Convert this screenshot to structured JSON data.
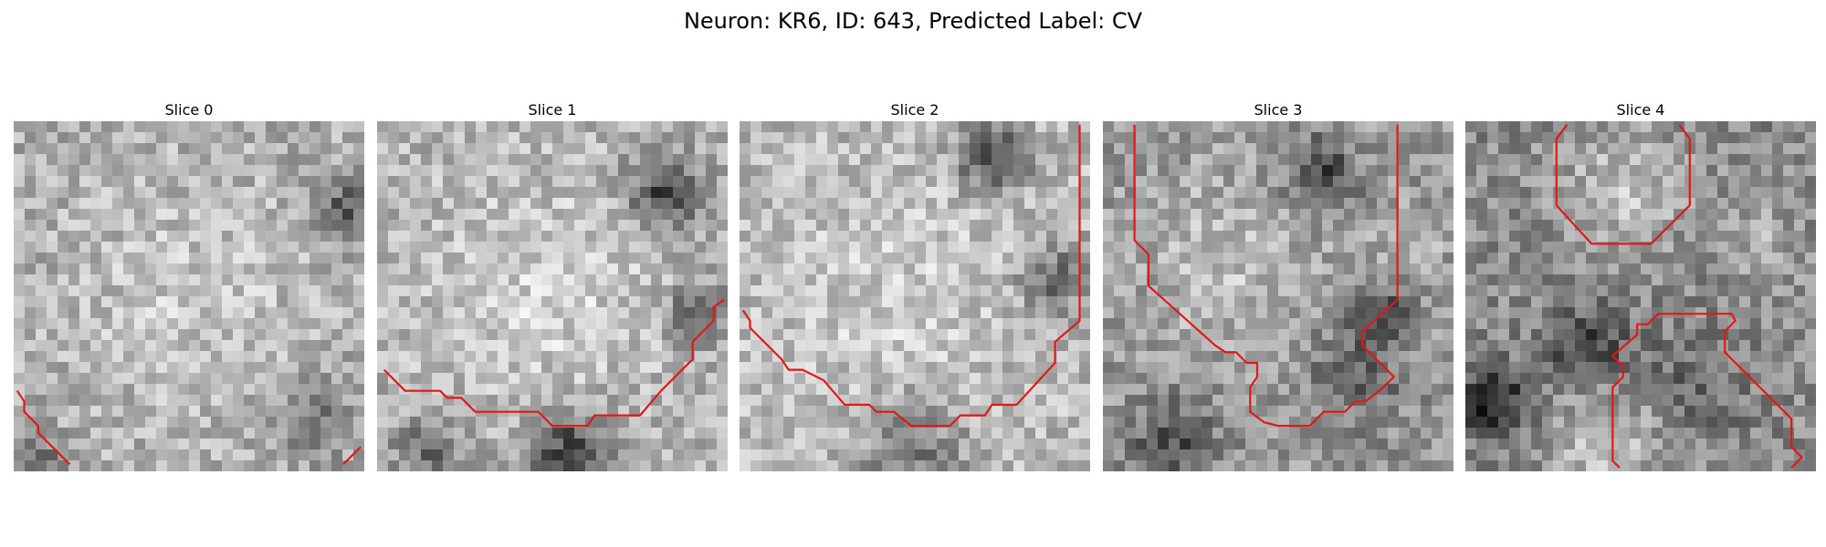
{
  "figure": {
    "title": "Neuron: KR6, ID: 643, Predicted Label: CV"
  },
  "colors": {
    "contour": "#e01818"
  },
  "slices": [
    {
      "title": "Slice 0",
      "seed": 11,
      "base": 0.68,
      "blobs": [
        [
          0.5,
          0.5,
          0.35,
          0.1
        ],
        [
          0.95,
          0.25,
          0.08,
          -0.35
        ],
        [
          0.85,
          0.85,
          0.12,
          -0.2
        ],
        [
          0.08,
          0.95,
          0.06,
          -0.25
        ]
      ],
      "contours": [
        [
          [
            0.01,
            0.77
          ],
          [
            0.03,
            0.8
          ],
          [
            0.03,
            0.83
          ],
          [
            0.07,
            0.87
          ],
          [
            0.07,
            0.89
          ],
          [
            0.16,
            0.98
          ]
        ],
        [
          [
            0.94,
            0.98
          ],
          [
            0.99,
            0.93
          ]
        ]
      ]
    },
    {
      "title": "Slice 1",
      "seed": 23,
      "base": 0.7,
      "blobs": [
        [
          0.47,
          0.5,
          0.33,
          0.12
        ],
        [
          0.82,
          0.2,
          0.1,
          -0.45
        ],
        [
          0.92,
          0.55,
          0.08,
          -0.4
        ],
        [
          0.55,
          0.95,
          0.12,
          -0.45
        ],
        [
          0.15,
          0.95,
          0.1,
          -0.3
        ]
      ],
      "contours": [
        [
          [
            0.02,
            0.71
          ],
          [
            0.08,
            0.77
          ],
          [
            0.18,
            0.77
          ],
          [
            0.2,
            0.79
          ],
          [
            0.24,
            0.79
          ],
          [
            0.28,
            0.83
          ],
          [
            0.46,
            0.83
          ],
          [
            0.5,
            0.87
          ],
          [
            0.6,
            0.87
          ],
          [
            0.62,
            0.84
          ],
          [
            0.75,
            0.84
          ],
          [
            0.81,
            0.77
          ],
          [
            0.9,
            0.68
          ],
          [
            0.9,
            0.63
          ],
          [
            0.96,
            0.57
          ],
          [
            0.96,
            0.53
          ],
          [
            0.99,
            0.51
          ]
        ]
      ]
    },
    {
      "title": "Slice 2",
      "seed": 37,
      "base": 0.72,
      "blobs": [
        [
          0.45,
          0.5,
          0.35,
          0.08
        ],
        [
          0.72,
          0.1,
          0.1,
          -0.45
        ],
        [
          0.9,
          0.45,
          0.1,
          -0.3
        ],
        [
          0.5,
          0.95,
          0.15,
          -0.25
        ]
      ],
      "contours": [
        [
          [
            0.01,
            0.54
          ],
          [
            0.03,
            0.57
          ],
          [
            0.03,
            0.59
          ],
          [
            0.12,
            0.68
          ],
          [
            0.14,
            0.71
          ],
          [
            0.18,
            0.71
          ],
          [
            0.24,
            0.74
          ],
          [
            0.3,
            0.81
          ],
          [
            0.37,
            0.81
          ],
          [
            0.39,
            0.83
          ],
          [
            0.44,
            0.83
          ],
          [
            0.49,
            0.87
          ],
          [
            0.6,
            0.87
          ],
          [
            0.63,
            0.84
          ],
          [
            0.7,
            0.84
          ],
          [
            0.72,
            0.81
          ],
          [
            0.79,
            0.81
          ],
          [
            0.9,
            0.69
          ],
          [
            0.9,
            0.63
          ],
          [
            0.97,
            0.57
          ],
          [
            0.97,
            0.01
          ]
        ]
      ]
    },
    {
      "title": "Slice 3",
      "seed": 51,
      "base": 0.6,
      "blobs": [
        [
          0.35,
          0.4,
          0.25,
          0.15
        ],
        [
          0.62,
          0.15,
          0.1,
          -0.35
        ],
        [
          0.72,
          0.72,
          0.15,
          -0.2
        ],
        [
          0.8,
          0.55,
          0.08,
          -0.35
        ],
        [
          0.2,
          0.92,
          0.12,
          -0.3
        ],
        [
          0.88,
          0.35,
          0.1,
          0.1
        ]
      ],
      "contours": [
        [
          [
            0.09,
            0.01
          ],
          [
            0.09,
            0.34
          ],
          [
            0.13,
            0.38
          ],
          [
            0.13,
            0.47
          ],
          [
            0.32,
            0.64
          ],
          [
            0.35,
            0.66
          ],
          [
            0.38,
            0.66
          ],
          [
            0.41,
            0.69
          ],
          [
            0.44,
            0.69
          ],
          [
            0.44,
            0.73
          ],
          [
            0.42,
            0.76
          ],
          [
            0.42,
            0.83
          ],
          [
            0.46,
            0.86
          ],
          [
            0.5,
            0.87
          ],
          [
            0.59,
            0.87
          ],
          [
            0.63,
            0.83
          ],
          [
            0.69,
            0.83
          ],
          [
            0.72,
            0.8
          ],
          [
            0.75,
            0.8
          ],
          [
            0.8,
            0.76
          ],
          [
            0.83,
            0.73
          ],
          [
            0.74,
            0.64
          ],
          [
            0.74,
            0.6
          ],
          [
            0.84,
            0.51
          ],
          [
            0.84,
            0.01
          ]
        ]
      ]
    },
    {
      "title": "Slice 4",
      "seed": 67,
      "base": 0.55,
      "blobs": [
        [
          0.45,
          0.2,
          0.18,
          0.2
        ],
        [
          0.35,
          0.65,
          0.12,
          -0.3
        ],
        [
          0.08,
          0.8,
          0.1,
          -0.45
        ],
        [
          0.65,
          0.75,
          0.15,
          -0.15
        ],
        [
          0.85,
          0.35,
          0.1,
          0.15
        ],
        [
          0.4,
          0.92,
          0.15,
          0.25
        ]
      ],
      "contours": [
        [
          [
            0.29,
            0.01
          ],
          [
            0.26,
            0.05
          ],
          [
            0.26,
            0.24
          ],
          [
            0.36,
            0.35
          ],
          [
            0.53,
            0.35
          ],
          [
            0.64,
            0.24
          ],
          [
            0.64,
            0.05
          ],
          [
            0.61,
            0.01
          ]
        ],
        [
          [
            0.44,
            0.99
          ],
          [
            0.42,
            0.97
          ],
          [
            0.42,
            0.76
          ],
          [
            0.45,
            0.73
          ],
          [
            0.45,
            0.7
          ],
          [
            0.42,
            0.67
          ],
          [
            0.49,
            0.61
          ],
          [
            0.49,
            0.58
          ],
          [
            0.52,
            0.58
          ],
          [
            0.55,
            0.55
          ],
          [
            0.76,
            0.55
          ],
          [
            0.77,
            0.57
          ],
          [
            0.74,
            0.6
          ],
          [
            0.74,
            0.66
          ],
          [
            0.93,
            0.85
          ],
          [
            0.93,
            0.93
          ],
          [
            0.96,
            0.96
          ],
          [
            0.93,
            0.99
          ]
        ]
      ]
    }
  ]
}
